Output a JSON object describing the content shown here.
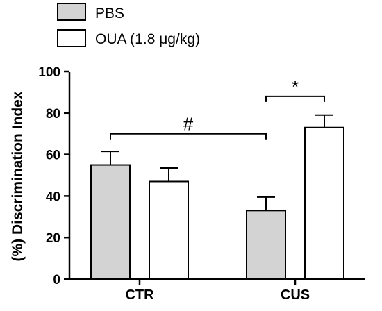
{
  "chart_data": {
    "type": "bar",
    "categories": [
      "CTR",
      "CUS"
    ],
    "series": [
      {
        "name": "PBS",
        "values": [
          55,
          33
        ],
        "errors": [
          6.5,
          6.5
        ],
        "color": "#d3d3d3"
      },
      {
        "name": "OUA (1.8 μg/kg)",
        "values": [
          47,
          73
        ],
        "errors": [
          6.5,
          6
        ],
        "color": "#ffffff"
      }
    ],
    "ylabel": "(%) Discrimination Index",
    "ylim": [
      0,
      100
    ],
    "yticks": [
      0,
      20,
      40,
      60,
      80,
      100
    ],
    "legend_position": "top-left",
    "annotations": [
      {
        "text": "#",
        "from": "CTR",
        "to": "CUS"
      },
      {
        "text": "*",
        "between": "CUS bars"
      }
    ]
  }
}
